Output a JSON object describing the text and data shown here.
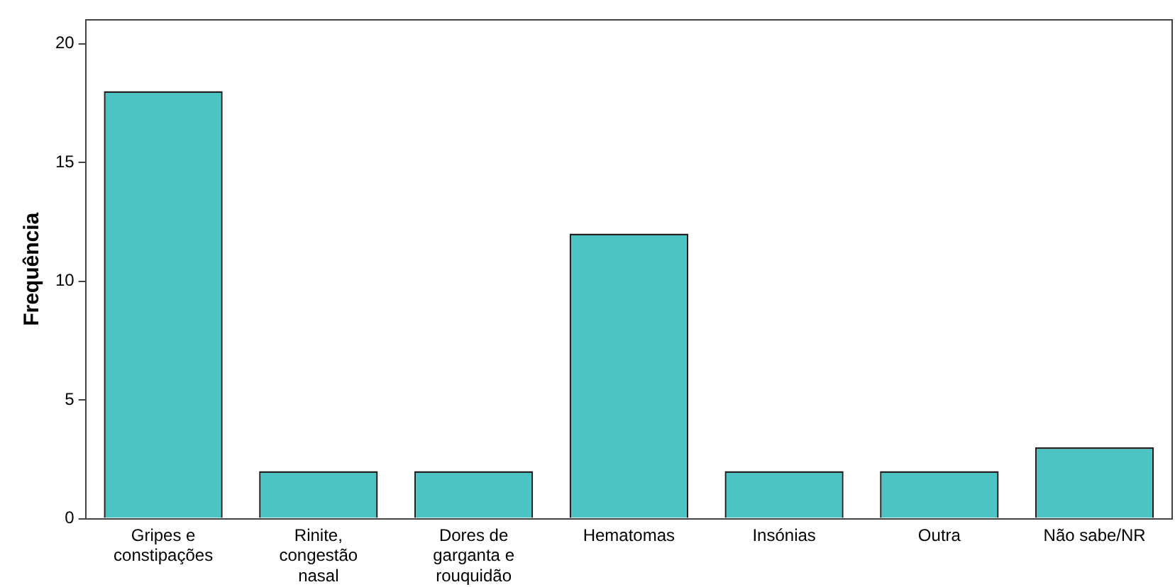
{
  "chart_data": {
    "type": "bar",
    "ylabel": "Frequência",
    "categories": [
      "Gripes e constipações",
      "Rinite, congestão nasal",
      "Dores de garganta e rouquidão",
      "Hematomas",
      "Insónias",
      "Outra",
      "Não sabe/NR"
    ],
    "values": [
      18,
      2,
      2,
      12,
      2,
      2,
      3
    ],
    "color": "#4cc4c4",
    "ylim": [
      0,
      21
    ],
    "yticks": [
      0,
      5,
      10,
      15,
      20
    ],
    "grid": false,
    "legend": false
  }
}
